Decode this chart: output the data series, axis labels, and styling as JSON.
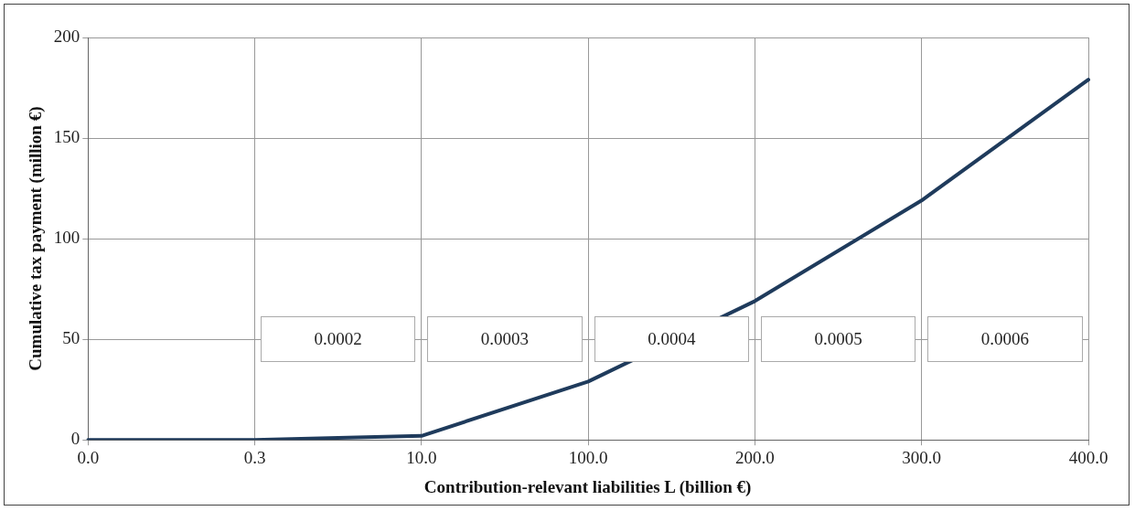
{
  "chart_data": {
    "type": "line",
    "xlabel": "Contribution-relevant liabilities L (billion €)",
    "ylabel": "Cumulative tax payment (million €)",
    "categories": [
      "0.0",
      "0.3",
      "10.0",
      "100.0",
      "200.0",
      "300.0",
      "400.0"
    ],
    "series": [
      {
        "color": "#1f3b5c",
        "values": [
          0,
          0,
          2,
          29,
          69,
          119,
          179
        ]
      }
    ],
    "ylim": [
      0,
      200
    ],
    "yticks": [
      0,
      50,
      100,
      150,
      200
    ],
    "annotations": [
      "0.0002",
      "0.0003",
      "0.0004",
      "0.0005",
      "0.0006"
    ],
    "grid": true,
    "legend": false,
    "marker": "none",
    "line_style": "solid"
  }
}
